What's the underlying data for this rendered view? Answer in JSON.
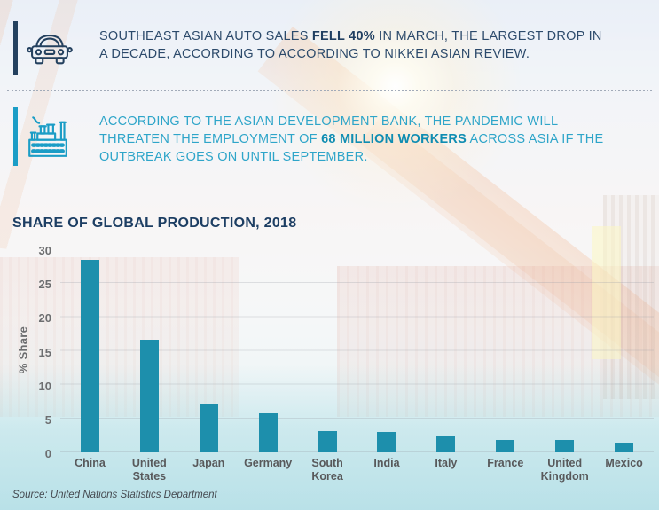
{
  "callouts": [
    {
      "icon": "car-icon",
      "accent_color": "#24415f",
      "line1_prefix": "SOUTHEAST ASIAN AUTO SALES ",
      "line1_bold": "FELL 40%",
      "line1_suffix": " IN MARCH, THE LARGEST DROP IN",
      "line2": "A DECADE, ACCORDING TO ACCORDING TO NIKKEI ASIAN REVIEW."
    },
    {
      "icon": "factory-icon",
      "accent_color": "#1b9dc6",
      "line1": "ACCORDING TO THE ASIAN DEVELOPMENT BANK, THE PANDEMIC WILL",
      "line2_prefix": "THREATEN THE EMPLOYMENT OF ",
      "line2_bold": "68 MILLION WORKERS",
      "line2_suffix": " ACROSS ASIA IF THE",
      "line3": "OUTBREAK GOES ON UNTIL SEPTEMBER."
    }
  ],
  "chart_data": {
    "type": "bar",
    "title": "SHARE OF GLOBAL PRODUCTION, 2018",
    "ylabel": "% Share",
    "categories": [
      "China",
      "United\nStates",
      "Japan",
      "Germany",
      "South\nKorea",
      "India",
      "Italy",
      "France",
      "United\nKingdom",
      "Mexico"
    ],
    "values": [
      28.4,
      16.6,
      7.2,
      5.8,
      3.2,
      3.0,
      2.3,
      1.9,
      1.8,
      1.5
    ],
    "ylim": [
      0,
      30
    ],
    "yticks": [
      0,
      5,
      10,
      15,
      20,
      25,
      30
    ],
    "grid": true,
    "legend": "none",
    "bar_color": "#1d8fac",
    "source": "Source: United Nations Statistics Department"
  }
}
